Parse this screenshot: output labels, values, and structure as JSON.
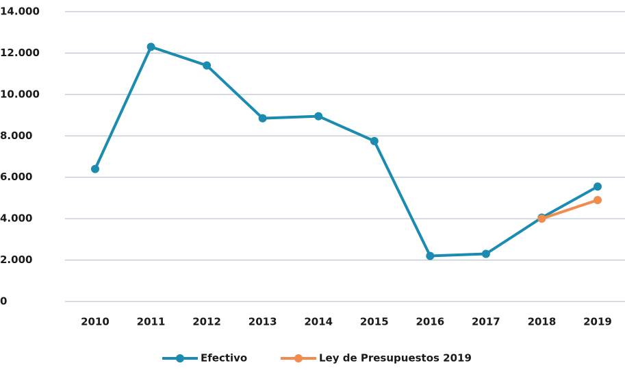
{
  "chart_data": {
    "type": "line",
    "categories": [
      "2010",
      "2011",
      "2012",
      "2013",
      "2014",
      "2015",
      "2016",
      "2017",
      "2018",
      "2019"
    ],
    "series": [
      {
        "name": "Efectivo",
        "color": "#1b8bb0",
        "values": [
          6400,
          12300,
          11400,
          8850,
          8950,
          7750,
          2200,
          2300,
          4050,
          5550
        ]
      },
      {
        "name": "Ley de Presupuestos 2019",
        "color": "#f28c4e",
        "values": [
          null,
          null,
          null,
          null,
          null,
          null,
          null,
          null,
          4000,
          4900
        ]
      }
    ],
    "ylim": [
      0,
      14000
    ],
    "yticks": [
      0,
      {
        "value": 2000,
        "label": "2.000"
      },
      {
        "value": 4000,
        "label": "4.000"
      },
      {
        "value": 6000,
        "label": "6.000"
      },
      {
        "value": 8000,
        "label": "8.000"
      },
      {
        "value": 10000,
        "label": "10.000"
      },
      {
        "value": 12000,
        "label": "12.000"
      },
      {
        "value": 14000,
        "label": "14.000"
      }
    ],
    "grid": true,
    "legend": "bottom"
  }
}
